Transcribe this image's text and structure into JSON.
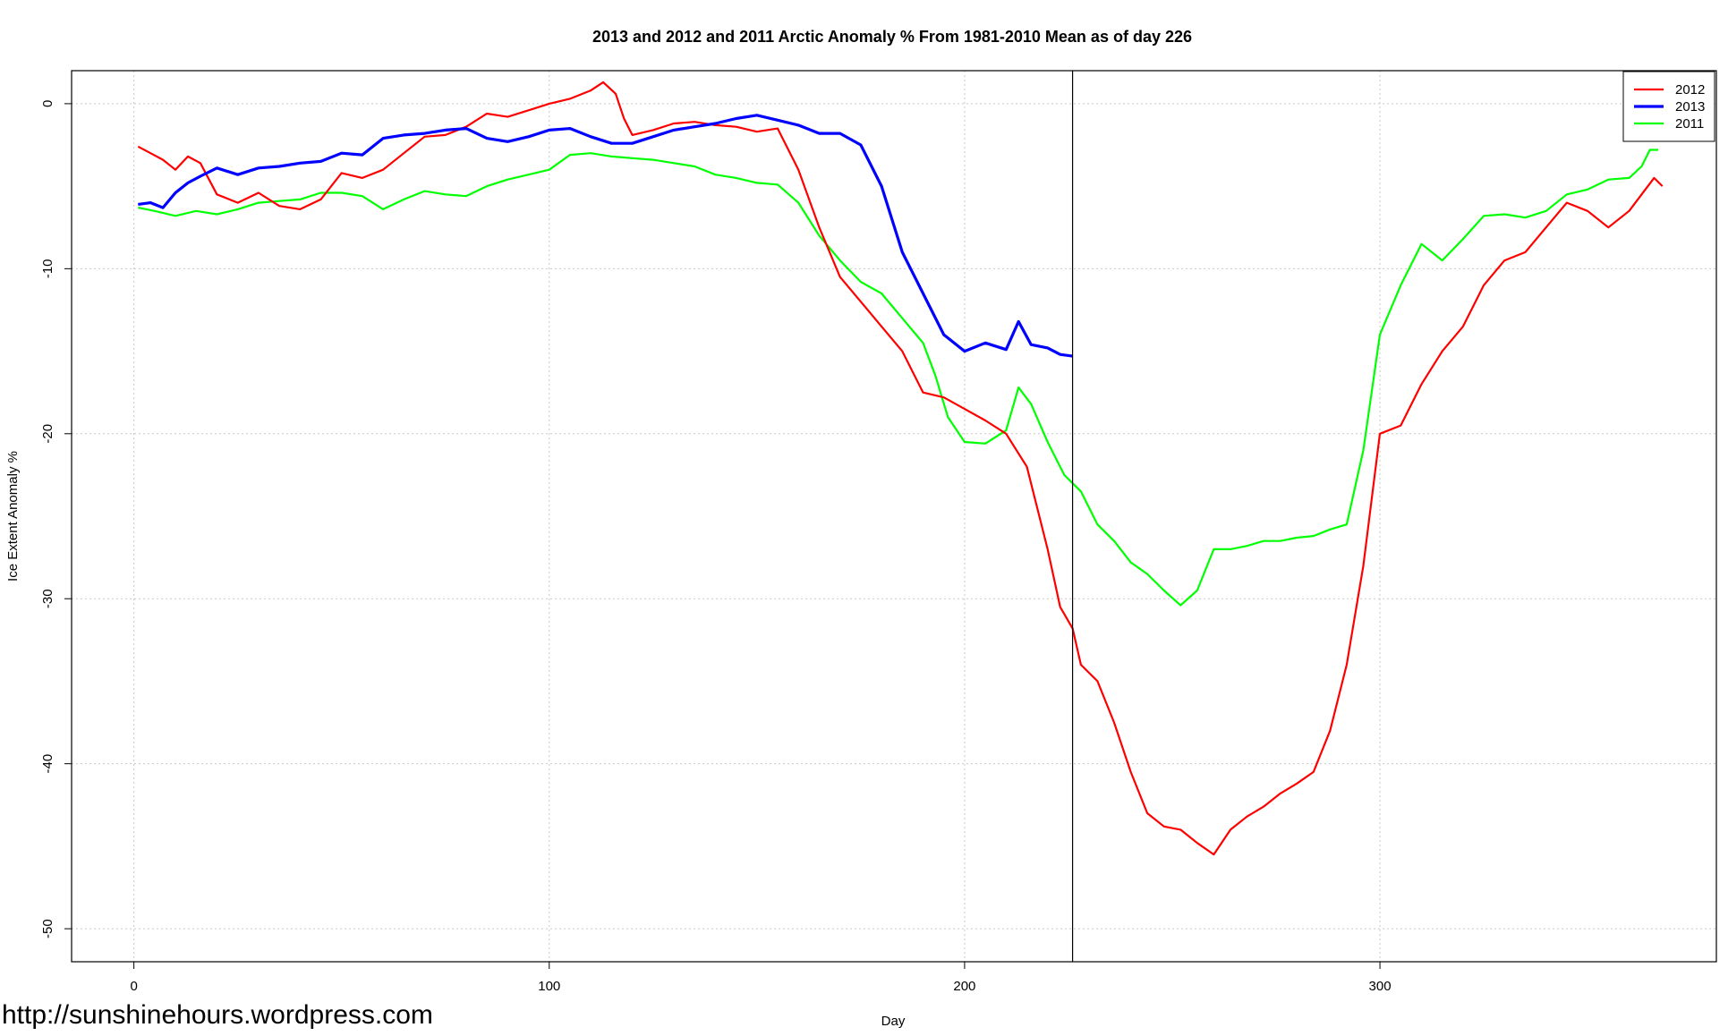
{
  "chart_data": {
    "type": "line",
    "title": "2013 and 2012 and 2011 Arctic Anomaly % From 1981-2010 Mean as of day 226",
    "xlabel": "Day",
    "ylabel": "Ice Extent Anomaly %",
    "xlim": [
      -15,
      381
    ],
    "ylim": [
      -52,
      2
    ],
    "xticks": [
      0,
      100,
      200,
      300
    ],
    "yticks": [
      0,
      -10,
      -20,
      -30,
      -40,
      -50
    ],
    "grid": true,
    "legend_position": "top-right",
    "vline_x": 226,
    "series": [
      {
        "name": "2012",
        "color": "#ff0000",
        "points": [
          [
            1,
            -2.6
          ],
          [
            4,
            -3.0
          ],
          [
            7,
            -3.4
          ],
          [
            10,
            -4.0
          ],
          [
            13,
            -3.2
          ],
          [
            16,
            -3.6
          ],
          [
            20,
            -5.5
          ],
          [
            25,
            -6.0
          ],
          [
            30,
            -5.4
          ],
          [
            35,
            -6.2
          ],
          [
            40,
            -6.4
          ],
          [
            45,
            -5.8
          ],
          [
            50,
            -4.2
          ],
          [
            55,
            -4.5
          ],
          [
            60,
            -4.0
          ],
          [
            65,
            -3.0
          ],
          [
            70,
            -2.0
          ],
          [
            75,
            -1.9
          ],
          [
            80,
            -1.4
          ],
          [
            85,
            -0.6
          ],
          [
            90,
            -0.8
          ],
          [
            95,
            -0.4
          ],
          [
            100,
            0.0
          ],
          [
            105,
            0.3
          ],
          [
            110,
            0.8
          ],
          [
            113,
            1.3
          ],
          [
            116,
            0.6
          ],
          [
            118,
            -0.9
          ],
          [
            120,
            -1.9
          ],
          [
            125,
            -1.6
          ],
          [
            130,
            -1.2
          ],
          [
            135,
            -1.1
          ],
          [
            140,
            -1.3
          ],
          [
            145,
            -1.4
          ],
          [
            150,
            -1.7
          ],
          [
            155,
            -1.5
          ],
          [
            160,
            -4.0
          ],
          [
            165,
            -7.5
          ],
          [
            170,
            -10.5
          ],
          [
            175,
            -12.0
          ],
          [
            180,
            -13.5
          ],
          [
            185,
            -15.0
          ],
          [
            190,
            -17.5
          ],
          [
            195,
            -17.8
          ],
          [
            200,
            -18.5
          ],
          [
            205,
            -19.2
          ],
          [
            210,
            -20.0
          ],
          [
            215,
            -22.0
          ],
          [
            220,
            -27.0
          ],
          [
            223,
            -30.5
          ],
          [
            226,
            -31.8
          ],
          [
            228,
            -34.0
          ],
          [
            232,
            -35.0
          ],
          [
            236,
            -37.5
          ],
          [
            240,
            -40.5
          ],
          [
            244,
            -43.0
          ],
          [
            248,
            -43.8
          ],
          [
            252,
            -44.0
          ],
          [
            256,
            -44.8
          ],
          [
            260,
            -45.5
          ],
          [
            264,
            -44.0
          ],
          [
            268,
            -43.2
          ],
          [
            272,
            -42.6
          ],
          [
            276,
            -41.8
          ],
          [
            280,
            -41.2
          ],
          [
            284,
            -40.5
          ],
          [
            288,
            -38.0
          ],
          [
            292,
            -34.0
          ],
          [
            296,
            -28.0
          ],
          [
            300,
            -20.0
          ],
          [
            305,
            -19.5
          ],
          [
            310,
            -17.0
          ],
          [
            315,
            -15.0
          ],
          [
            320,
            -13.5
          ],
          [
            325,
            -11.0
          ],
          [
            330,
            -9.5
          ],
          [
            335,
            -9.0
          ],
          [
            340,
            -7.5
          ],
          [
            345,
            -6.0
          ],
          [
            350,
            -6.5
          ],
          [
            355,
            -7.5
          ],
          [
            360,
            -6.5
          ],
          [
            363,
            -5.5
          ],
          [
            366,
            -4.5
          ],
          [
            368,
            -5.0
          ]
        ]
      },
      {
        "name": "2013",
        "color": "#0000ff",
        "points": [
          [
            1,
            -6.1
          ],
          [
            4,
            -6.0
          ],
          [
            7,
            -6.3
          ],
          [
            10,
            -5.4
          ],
          [
            13,
            -4.8
          ],
          [
            16,
            -4.4
          ],
          [
            20,
            -3.9
          ],
          [
            25,
            -4.3
          ],
          [
            30,
            -3.9
          ],
          [
            35,
            -3.8
          ],
          [
            40,
            -3.6
          ],
          [
            45,
            -3.5
          ],
          [
            50,
            -3.0
          ],
          [
            55,
            -3.1
          ],
          [
            60,
            -2.1
          ],
          [
            65,
            -1.9
          ],
          [
            70,
            -1.8
          ],
          [
            75,
            -1.6
          ],
          [
            80,
            -1.5
          ],
          [
            85,
            -2.1
          ],
          [
            90,
            -2.3
          ],
          [
            95,
            -2.0
          ],
          [
            100,
            -1.6
          ],
          [
            105,
            -1.5
          ],
          [
            110,
            -2.0
          ],
          [
            115,
            -2.4
          ],
          [
            120,
            -2.4
          ],
          [
            125,
            -2.0
          ],
          [
            130,
            -1.6
          ],
          [
            135,
            -1.4
          ],
          [
            140,
            -1.2
          ],
          [
            145,
            -0.9
          ],
          [
            150,
            -0.7
          ],
          [
            155,
            -1.0
          ],
          [
            160,
            -1.3
          ],
          [
            165,
            -1.8
          ],
          [
            170,
            -1.8
          ],
          [
            175,
            -2.5
          ],
          [
            180,
            -5.0
          ],
          [
            185,
            -9.0
          ],
          [
            190,
            -11.5
          ],
          [
            195,
            -14.0
          ],
          [
            200,
            -15.0
          ],
          [
            205,
            -14.5
          ],
          [
            210,
            -14.9
          ],
          [
            213,
            -13.2
          ],
          [
            216,
            -14.6
          ],
          [
            220,
            -14.8
          ],
          [
            223,
            -15.2
          ],
          [
            226,
            -15.3
          ]
        ]
      },
      {
        "name": "2011",
        "color": "#00ff00",
        "points": [
          [
            1,
            -6.3
          ],
          [
            5,
            -6.5
          ],
          [
            10,
            -6.8
          ],
          [
            15,
            -6.5
          ],
          [
            20,
            -6.7
          ],
          [
            25,
            -6.4
          ],
          [
            30,
            -6.0
          ],
          [
            35,
            -5.9
          ],
          [
            40,
            -5.8
          ],
          [
            45,
            -5.4
          ],
          [
            50,
            -5.4
          ],
          [
            55,
            -5.6
          ],
          [
            60,
            -6.4
          ],
          [
            65,
            -5.8
          ],
          [
            70,
            -5.3
          ],
          [
            75,
            -5.5
          ],
          [
            80,
            -5.6
          ],
          [
            85,
            -5.0
          ],
          [
            90,
            -4.6
          ],
          [
            95,
            -4.3
          ],
          [
            100,
            -4.0
          ],
          [
            105,
            -3.1
          ],
          [
            110,
            -3.0
          ],
          [
            115,
            -3.2
          ],
          [
            120,
            -3.3
          ],
          [
            125,
            -3.4
          ],
          [
            130,
            -3.6
          ],
          [
            135,
            -3.8
          ],
          [
            140,
            -4.3
          ],
          [
            145,
            -4.5
          ],
          [
            150,
            -4.8
          ],
          [
            155,
            -4.9
          ],
          [
            160,
            -6.0
          ],
          [
            165,
            -8.0
          ],
          [
            170,
            -9.5
          ],
          [
            175,
            -10.8
          ],
          [
            180,
            -11.5
          ],
          [
            185,
            -13.0
          ],
          [
            190,
            -14.5
          ],
          [
            193,
            -16.5
          ],
          [
            196,
            -19.0
          ],
          [
            200,
            -20.5
          ],
          [
            205,
            -20.6
          ],
          [
            210,
            -19.8
          ],
          [
            213,
            -17.2
          ],
          [
            216,
            -18.2
          ],
          [
            220,
            -20.5
          ],
          [
            224,
            -22.5
          ],
          [
            228,
            -23.5
          ],
          [
            232,
            -25.5
          ],
          [
            236,
            -26.5
          ],
          [
            240,
            -27.8
          ],
          [
            244,
            -28.5
          ],
          [
            248,
            -29.5
          ],
          [
            252,
            -30.4
          ],
          [
            256,
            -29.5
          ],
          [
            260,
            -27.0
          ],
          [
            264,
            -27.0
          ],
          [
            268,
            -26.8
          ],
          [
            272,
            -26.5
          ],
          [
            276,
            -26.5
          ],
          [
            280,
            -26.3
          ],
          [
            284,
            -26.2
          ],
          [
            288,
            -25.8
          ],
          [
            292,
            -25.5
          ],
          [
            296,
            -21.0
          ],
          [
            300,
            -14.0
          ],
          [
            305,
            -11.0
          ],
          [
            310,
            -8.5
          ],
          [
            315,
            -9.5
          ],
          [
            320,
            -8.2
          ],
          [
            325,
            -6.8
          ],
          [
            330,
            -6.7
          ],
          [
            335,
            -6.9
          ],
          [
            340,
            -6.5
          ],
          [
            345,
            -5.5
          ],
          [
            350,
            -5.2
          ],
          [
            355,
            -4.6
          ],
          [
            360,
            -4.5
          ],
          [
            363,
            -3.8
          ],
          [
            365,
            -2.8
          ],
          [
            367,
            -2.8
          ]
        ]
      }
    ]
  },
  "watermark": "http://sunshinehours.wordpress.com"
}
